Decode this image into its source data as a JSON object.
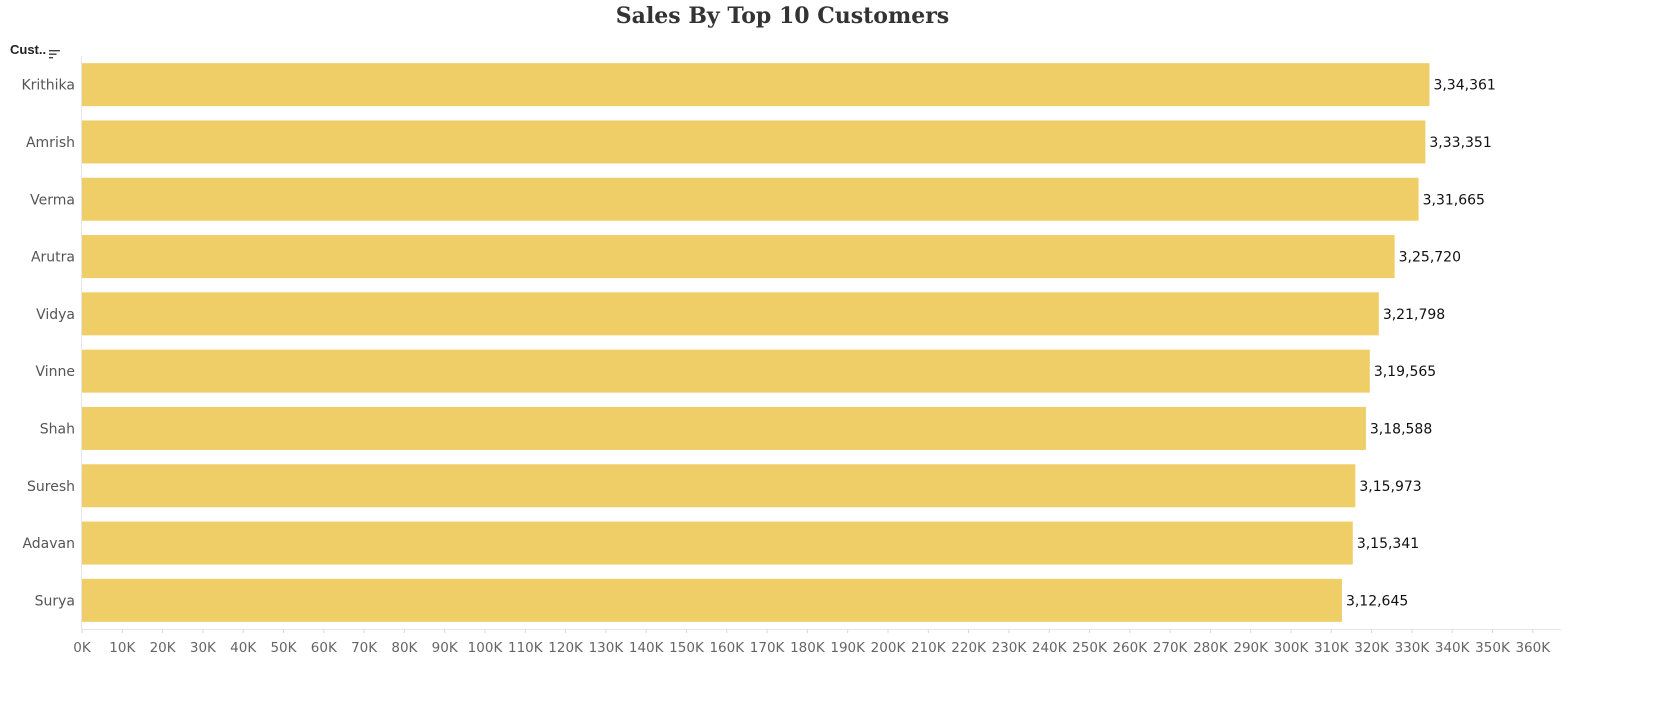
{
  "header": {
    "field_label": "Cust..",
    "sort_icon": "sort-descending-icon"
  },
  "chart_data": {
    "type": "bar",
    "orientation": "horizontal",
    "title": "Sales By Top 10 Customers",
    "xlabel": "",
    "ylabel": "",
    "categories": [
      "Krithika",
      "Amrish",
      "Verma",
      "Arutra",
      "Vidya",
      "Vinne",
      "Shah",
      "Suresh",
      "Adavan",
      "Surya"
    ],
    "values": [
      334361,
      333351,
      331665,
      325720,
      321798,
      319565,
      318588,
      315973,
      315341,
      312645
    ],
    "data_labels": [
      "3,34,361",
      "3,33,351",
      "3,31,665",
      "3,25,720",
      "3,21,798",
      "3,19,565",
      "3,18,588",
      "3,15,973",
      "3,15,341",
      "3,12,645"
    ],
    "xlim": [
      0,
      367000
    ],
    "x_ticks": [
      0,
      10000,
      20000,
      30000,
      40000,
      50000,
      60000,
      70000,
      80000,
      90000,
      100000,
      110000,
      120000,
      130000,
      140000,
      150000,
      160000,
      170000,
      180000,
      190000,
      200000,
      210000,
      220000,
      230000,
      240000,
      250000,
      260000,
      270000,
      280000,
      290000,
      300000,
      310000,
      320000,
      330000,
      340000,
      350000,
      360000
    ],
    "x_tick_labels": [
      "0K",
      "10K",
      "20K",
      "30K",
      "40K",
      "50K",
      "60K",
      "70K",
      "80K",
      "90K",
      "100K",
      "110K",
      "120K",
      "130K",
      "140K",
      "150K",
      "160K",
      "170K",
      "180K",
      "190K",
      "200K",
      "210K",
      "220K",
      "230K",
      "240K",
      "250K",
      "260K",
      "270K",
      "280K",
      "290K",
      "300K",
      "310K",
      "320K",
      "330K",
      "340K",
      "350K",
      "360K"
    ],
    "bar_color": "#EFCE68",
    "grid": false,
    "legend": "none"
  }
}
